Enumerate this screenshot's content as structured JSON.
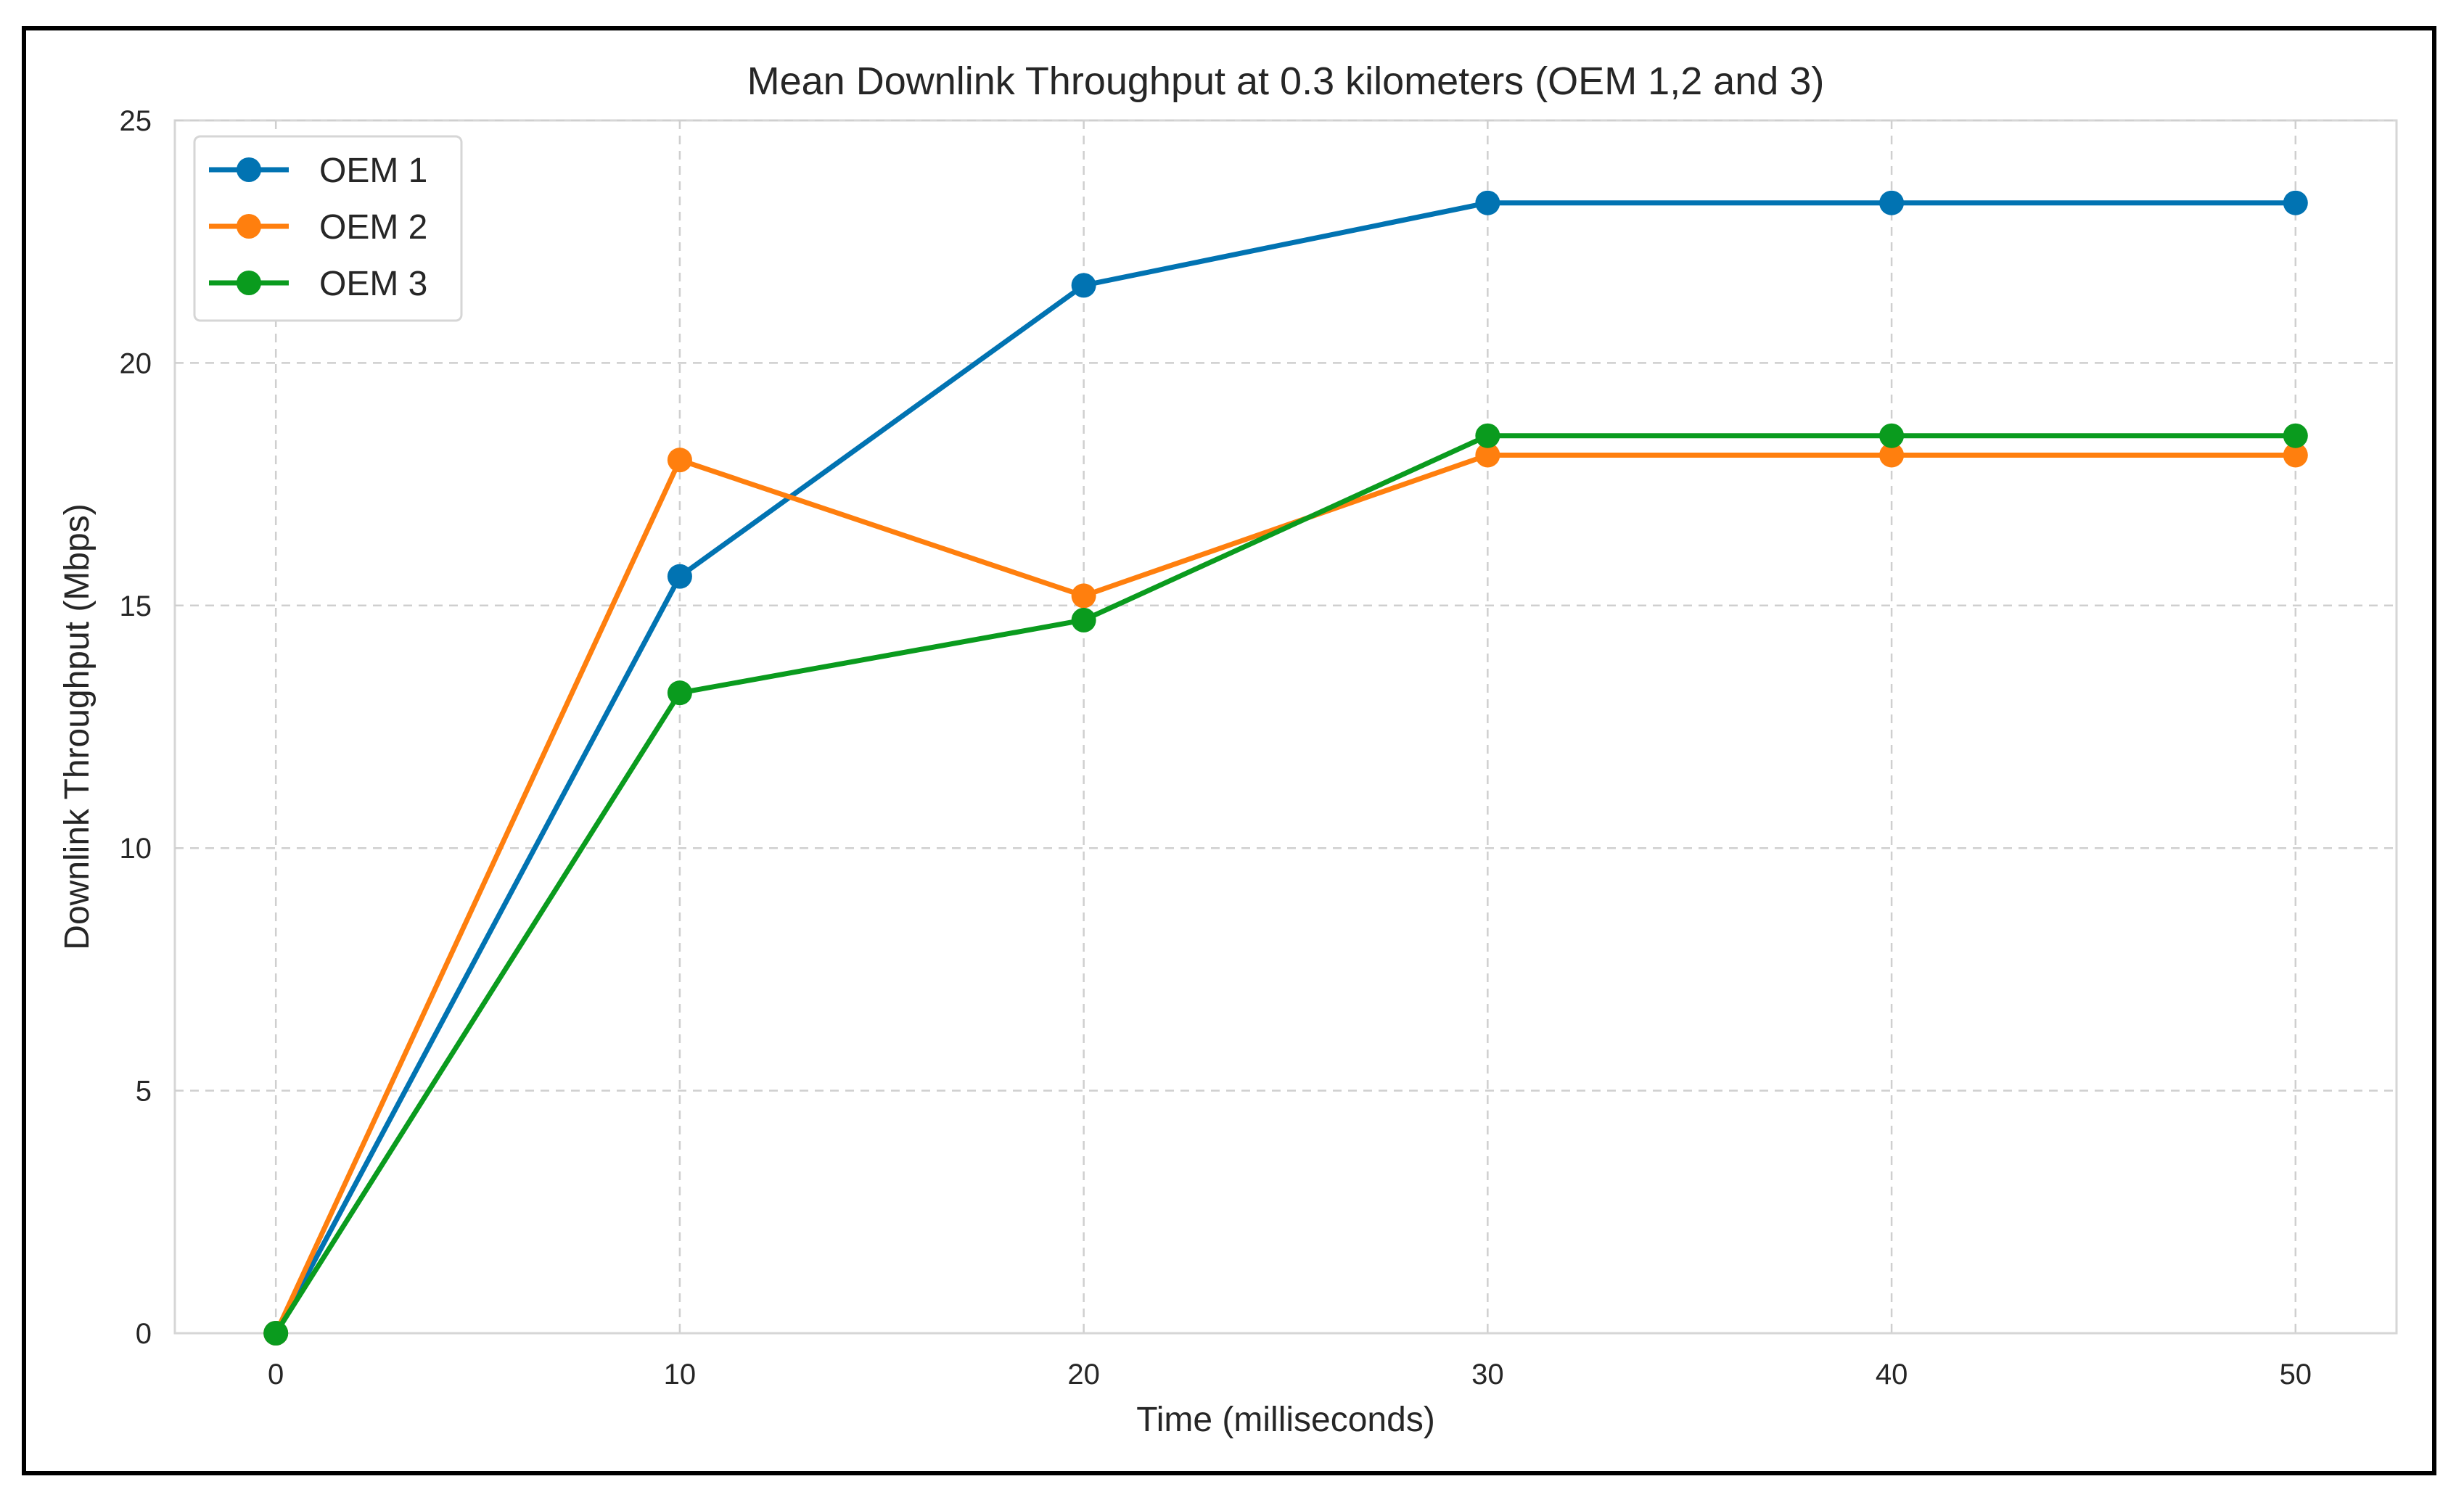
{
  "chart_data": {
    "type": "line",
    "title": "Mean Downlink Throughput at 0.3 kilometers (OEM 1,2 and 3)",
    "xlabel": "Time (milliseconds)",
    "ylabel": "Downlink Throughput (Mbps)",
    "x": [
      0,
      10,
      20,
      30,
      40,
      50
    ],
    "xlim": [
      -2.5,
      52.5
    ],
    "ylim": [
      0,
      25
    ],
    "xticks": [
      0,
      10,
      20,
      30,
      40,
      50
    ],
    "yticks": [
      0,
      5,
      10,
      15,
      20,
      25
    ],
    "grid": true,
    "legend_position": "top-left",
    "series": [
      {
        "name": "OEM 1",
        "color": "#0173b2",
        "values": [
          0,
          15.6,
          21.6,
          23.3,
          23.3,
          23.3
        ]
      },
      {
        "name": "OEM 2",
        "color": "#ff7f0e",
        "values": [
          0,
          18.0,
          15.2,
          18.1,
          18.1,
          18.1
        ]
      },
      {
        "name": "OEM 3",
        "color": "#0a9b1e",
        "values": [
          0,
          13.2,
          14.7,
          18.5,
          18.5,
          18.5
        ]
      }
    ]
  }
}
